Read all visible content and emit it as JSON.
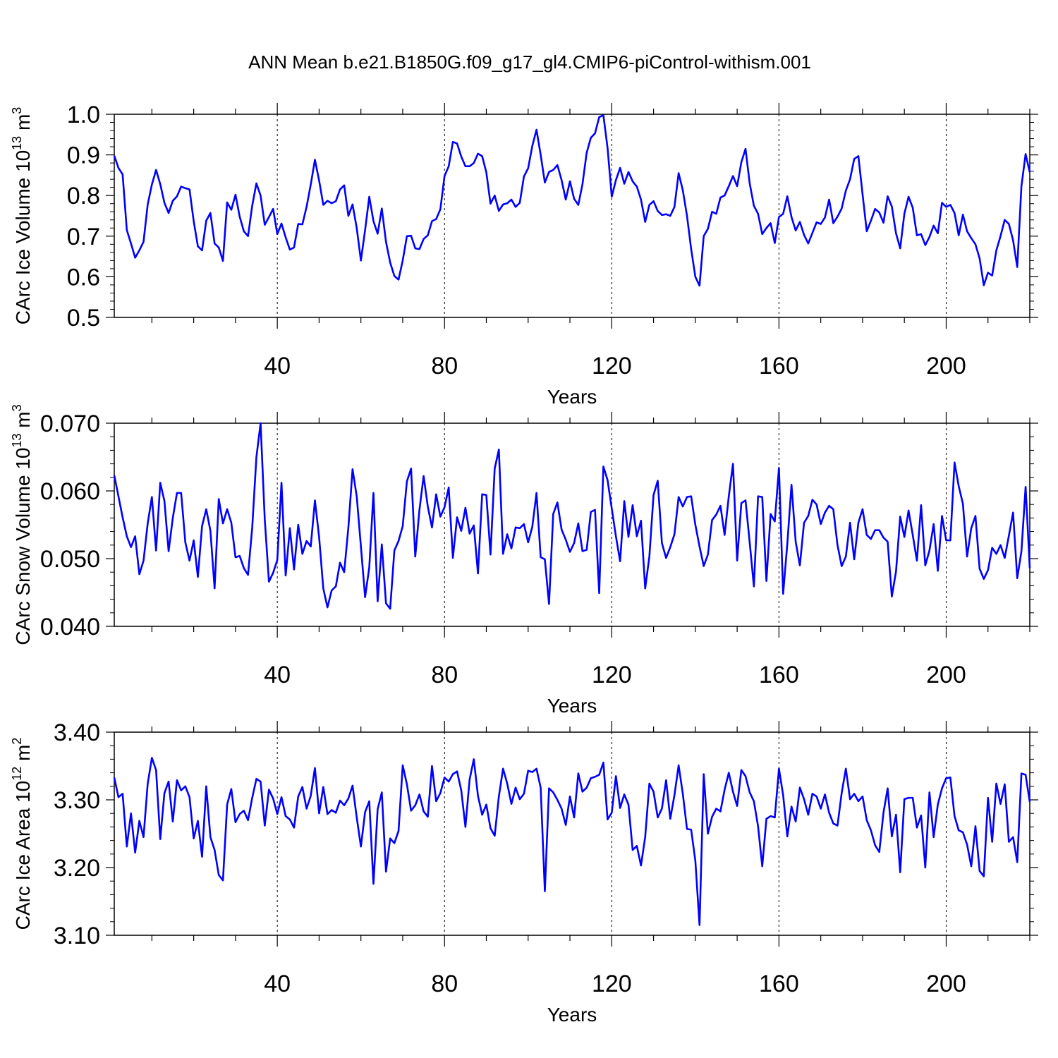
{
  "title": "ANN Mean b.e21.B1850G.f09_g17_gl4.CMIP6-piControl-withism.001",
  "line_color": "#0000ff",
  "chart_data": [
    {
      "type": "line",
      "title": "",
      "xlabel": "Years",
      "ylabel": "CArc Ice Volume",
      "ylabel_unit": "10",
      "ylabel_exp": "13",
      "ylabel_unit2": "m",
      "ylabel_exp2": "3",
      "xlim": [
        1,
        220
      ],
      "ylim": [
        0.5,
        1.0
      ],
      "xticks": [
        40,
        80,
        120,
        160,
        200
      ],
      "xtick_labels": [
        "40",
        "80",
        "120",
        "160",
        "200"
      ],
      "yticks": [
        0.5,
        0.6,
        0.7,
        0.8,
        0.9,
        1.0
      ],
      "ytick_labels": [
        "0.5",
        "0.6",
        "0.7",
        "0.8",
        "0.9",
        "1.0"
      ],
      "grid": "dashed vertical at x ticks",
      "series": [
        {
          "name": "CArc Ice Volume",
          "x_start": 1,
          "values": [
            0.898,
            0.868,
            0.852,
            0.715,
            0.682,
            0.647,
            0.665,
            0.686,
            0.778,
            0.827,
            0.863,
            0.828,
            0.782,
            0.757,
            0.787,
            0.798,
            0.822,
            0.818,
            0.815,
            0.737,
            0.675,
            0.665,
            0.738,
            0.757,
            0.682,
            0.672,
            0.639,
            0.783,
            0.765,
            0.802,
            0.748,
            0.712,
            0.7,
            0.775,
            0.83,
            0.8,
            0.728,
            0.747,
            0.767,
            0.705,
            0.731,
            0.697,
            0.667,
            0.672,
            0.73,
            0.729,
            0.772,
            0.827,
            0.888,
            0.837,
            0.777,
            0.787,
            0.781,
            0.786,
            0.815,
            0.825,
            0.75,
            0.778,
            0.72,
            0.64,
            0.715,
            0.797,
            0.737,
            0.706,
            0.768,
            0.686,
            0.635,
            0.602,
            0.593,
            0.64,
            0.7,
            0.701,
            0.67,
            0.668,
            0.693,
            0.702,
            0.737,
            0.742,
            0.766,
            0.848,
            0.872,
            0.932,
            0.928,
            0.896,
            0.872,
            0.872,
            0.88,
            0.903,
            0.897,
            0.857,
            0.78,
            0.8,
            0.762,
            0.778,
            0.781,
            0.79,
            0.772,
            0.782,
            0.847,
            0.867,
            0.922,
            0.962,
            0.9,
            0.832,
            0.858,
            0.863,
            0.875,
            0.838,
            0.79,
            0.835,
            0.792,
            0.777,
            0.828,
            0.905,
            0.942,
            0.953,
            0.993,
            0.998,
            0.917,
            0.797,
            0.838,
            0.868,
            0.829,
            0.858,
            0.835,
            0.822,
            0.79,
            0.735,
            0.777,
            0.786,
            0.762,
            0.752,
            0.754,
            0.75,
            0.772,
            0.855,
            0.813,
            0.75,
            0.668,
            0.6,
            0.578,
            0.7,
            0.718,
            0.76,
            0.755,
            0.795,
            0.8,
            0.823,
            0.848,
            0.823,
            0.882,
            0.915,
            0.83,
            0.775,
            0.755,
            0.705,
            0.72,
            0.732,
            0.683,
            0.747,
            0.755,
            0.798,
            0.747,
            0.714,
            0.735,
            0.703,
            0.682,
            0.708,
            0.734,
            0.73,
            0.746,
            0.79,
            0.732,
            0.748,
            0.768,
            0.812,
            0.84,
            0.89,
            0.897,
            0.803,
            0.712,
            0.738,
            0.767,
            0.758,
            0.733,
            0.798,
            0.773,
            0.707,
            0.67,
            0.755,
            0.797,
            0.77,
            0.702,
            0.705,
            0.678,
            0.698,
            0.726,
            0.707,
            0.782,
            0.772,
            0.777,
            0.757,
            0.702,
            0.753,
            0.712,
            0.695,
            0.68,
            0.645,
            0.579,
            0.61,
            0.603,
            0.665,
            0.7,
            0.74,
            0.73,
            0.69,
            0.624,
            0.823,
            0.902,
            0.857
          ]
        }
      ]
    },
    {
      "type": "line",
      "title": "",
      "xlabel": "Years",
      "ylabel": "CArc Snow Volume",
      "ylabel_unit": "10",
      "ylabel_exp": "13",
      "ylabel_unit2": "m",
      "ylabel_exp2": "3",
      "xlim": [
        1,
        220
      ],
      "ylim": [
        0.04,
        0.07
      ],
      "xticks": [
        40,
        80,
        120,
        160,
        200
      ],
      "xtick_labels": [
        "40",
        "80",
        "120",
        "160",
        "200"
      ],
      "yticks": [
        0.04,
        0.05,
        0.06,
        0.07
      ],
      "ytick_labels": [
        "0.040",
        "0.050",
        "0.060",
        "0.070"
      ],
      "grid": "dashed vertical at x ticks",
      "series": [
        {
          "name": "CArc Snow Volume",
          "x_start": 1,
          "values": [
            0.0623,
            0.0592,
            0.0561,
            0.0533,
            0.0517,
            0.0533,
            0.0477,
            0.0497,
            0.0552,
            0.0591,
            0.0512,
            0.0612,
            0.0585,
            0.0511,
            0.056,
            0.0597,
            0.0597,
            0.0524,
            0.0497,
            0.0527,
            0.0473,
            0.0548,
            0.0573,
            0.0541,
            0.0456,
            0.0588,
            0.0552,
            0.0573,
            0.0553,
            0.0502,
            0.0504,
            0.0486,
            0.0476,
            0.0546,
            0.065,
            0.07,
            0.0558,
            0.0466,
            0.0479,
            0.0498,
            0.0612,
            0.0475,
            0.0545,
            0.0484,
            0.055,
            0.0507,
            0.0526,
            0.0518,
            0.0586,
            0.0532,
            0.0456,
            0.0428,
            0.0453,
            0.0459,
            0.0494,
            0.048,
            0.0546,
            0.0632,
            0.0592,
            0.0518,
            0.0443,
            0.0487,
            0.0597,
            0.0437,
            0.0521,
            0.0434,
            0.0426,
            0.0512,
            0.0526,
            0.0548,
            0.0614,
            0.0633,
            0.0503,
            0.0572,
            0.0622,
            0.0577,
            0.0546,
            0.0595,
            0.0562,
            0.0576,
            0.0605,
            0.0501,
            0.0561,
            0.0541,
            0.0575,
            0.0537,
            0.0549,
            0.0478,
            0.0595,
            0.0594,
            0.0506,
            0.0633,
            0.0661,
            0.0507,
            0.0536,
            0.0515,
            0.0546,
            0.0545,
            0.0551,
            0.0524,
            0.0547,
            0.0597,
            0.0502,
            0.0499,
            0.0433,
            0.0566,
            0.0583,
            0.0543,
            0.0528,
            0.051,
            0.0523,
            0.0552,
            0.0511,
            0.0513,
            0.0569,
            0.0572,
            0.0449,
            0.0636,
            0.0616,
            0.0574,
            0.0533,
            0.0496,
            0.0585,
            0.0532,
            0.0579,
            0.0533,
            0.0556,
            0.0456,
            0.0503,
            0.0594,
            0.0615,
            0.0523,
            0.0501,
            0.0517,
            0.0536,
            0.0591,
            0.0577,
            0.0591,
            0.0592,
            0.055,
            0.0518,
            0.0489,
            0.0506,
            0.0557,
            0.0565,
            0.0578,
            0.0535,
            0.0592,
            0.064,
            0.0497,
            0.0582,
            0.0586,
            0.0524,
            0.0459,
            0.0592,
            0.0591,
            0.0467,
            0.0566,
            0.0555,
            0.0634,
            0.0448,
            0.0522,
            0.0609,
            0.0525,
            0.049,
            0.0553,
            0.0563,
            0.0587,
            0.058,
            0.0551,
            0.0568,
            0.0578,
            0.0573,
            0.052,
            0.0489,
            0.0503,
            0.0553,
            0.0499,
            0.0553,
            0.0573,
            0.0535,
            0.0529,
            0.0542,
            0.0542,
            0.0531,
            0.0525,
            0.0444,
            0.0481,
            0.0562,
            0.0532,
            0.0571,
            0.0535,
            0.0497,
            0.0579,
            0.049,
            0.0512,
            0.0551,
            0.0482,
            0.0563,
            0.0527,
            0.0527,
            0.0642,
            0.0607,
            0.0581,
            0.0503,
            0.0545,
            0.0563,
            0.0485,
            0.047,
            0.0483,
            0.0516,
            0.0507,
            0.052,
            0.0501,
            0.0534,
            0.0568,
            0.0471,
            0.0511,
            0.0606,
            0.0486
          ]
        }
      ]
    },
    {
      "type": "line",
      "title": "",
      "xlabel": "Years",
      "ylabel": "CArc Ice Area",
      "ylabel_unit": "10",
      "ylabel_exp": "12",
      "ylabel_unit2": "m",
      "ylabel_exp2": "2",
      "xlim": [
        1,
        220
      ],
      "ylim": [
        3.1,
        3.4
      ],
      "xticks": [
        40,
        80,
        120,
        160,
        200
      ],
      "xtick_labels": [
        "40",
        "80",
        "120",
        "160",
        "200"
      ],
      "yticks": [
        3.1,
        3.2,
        3.3,
        3.4
      ],
      "ytick_labels": [
        "3.10",
        "3.20",
        "3.30",
        "3.40"
      ],
      "grid": "dashed vertical at x ticks",
      "series": [
        {
          "name": "CArc Ice Area",
          "x_start": 1,
          "values": [
            3.333,
            3.304,
            3.309,
            3.231,
            3.28,
            3.222,
            3.269,
            3.245,
            3.324,
            3.362,
            3.344,
            3.242,
            3.31,
            3.327,
            3.268,
            3.329,
            3.314,
            3.32,
            3.304,
            3.243,
            3.269,
            3.216,
            3.32,
            3.245,
            3.226,
            3.189,
            3.181,
            3.293,
            3.316,
            3.267,
            3.279,
            3.284,
            3.27,
            3.303,
            3.331,
            3.327,
            3.262,
            3.315,
            3.302,
            3.279,
            3.304,
            3.276,
            3.271,
            3.259,
            3.305,
            3.319,
            3.287,
            3.306,
            3.347,
            3.28,
            3.319,
            3.279,
            3.285,
            3.281,
            3.299,
            3.292,
            3.302,
            3.321,
            3.274,
            3.231,
            3.282,
            3.298,
            3.176,
            3.286,
            3.311,
            3.194,
            3.243,
            3.236,
            3.254,
            3.351,
            3.323,
            3.284,
            3.292,
            3.308,
            3.283,
            3.275,
            3.35,
            3.298,
            3.31,
            3.333,
            3.327,
            3.338,
            3.342,
            3.314,
            3.26,
            3.33,
            3.36,
            3.306,
            3.278,
            3.293,
            3.258,
            3.247,
            3.305,
            3.346,
            3.324,
            3.294,
            3.318,
            3.301,
            3.309,
            3.343,
            3.341,
            3.346,
            3.318,
            3.165,
            3.317,
            3.311,
            3.3,
            3.287,
            3.263,
            3.305,
            3.274,
            3.339,
            3.312,
            3.318,
            3.332,
            3.334,
            3.337,
            3.355,
            3.271,
            3.281,
            3.335,
            3.288,
            3.308,
            3.293,
            3.226,
            3.232,
            3.203,
            3.245,
            3.324,
            3.312,
            3.274,
            3.287,
            3.329,
            3.272,
            3.307,
            3.351,
            3.309,
            3.257,
            3.256,
            3.21,
            3.115,
            3.338,
            3.25,
            3.275,
            3.287,
            3.283,
            3.315,
            3.34,
            3.312,
            3.291,
            3.344,
            3.335,
            3.311,
            3.298,
            3.261,
            3.202,
            3.272,
            3.276,
            3.274,
            3.346,
            3.307,
            3.246,
            3.29,
            3.268,
            3.318,
            3.301,
            3.278,
            3.309,
            3.305,
            3.287,
            3.308,
            3.281,
            3.265,
            3.262,
            3.31,
            3.346,
            3.301,
            3.309,
            3.298,
            3.305,
            3.27,
            3.255,
            3.233,
            3.223,
            3.281,
            3.317,
            3.246,
            3.278,
            3.193,
            3.301,
            3.303,
            3.303,
            3.259,
            3.277,
            3.2,
            3.311,
            3.245,
            3.293,
            3.317,
            3.332,
            3.333,
            3.276,
            3.255,
            3.252,
            3.234,
            3.202,
            3.261,
            3.195,
            3.187,
            3.303,
            3.238,
            3.324,
            3.294,
            3.323,
            3.238,
            3.245,
            3.208,
            3.339,
            3.337,
            3.297
          ]
        }
      ]
    }
  ]
}
